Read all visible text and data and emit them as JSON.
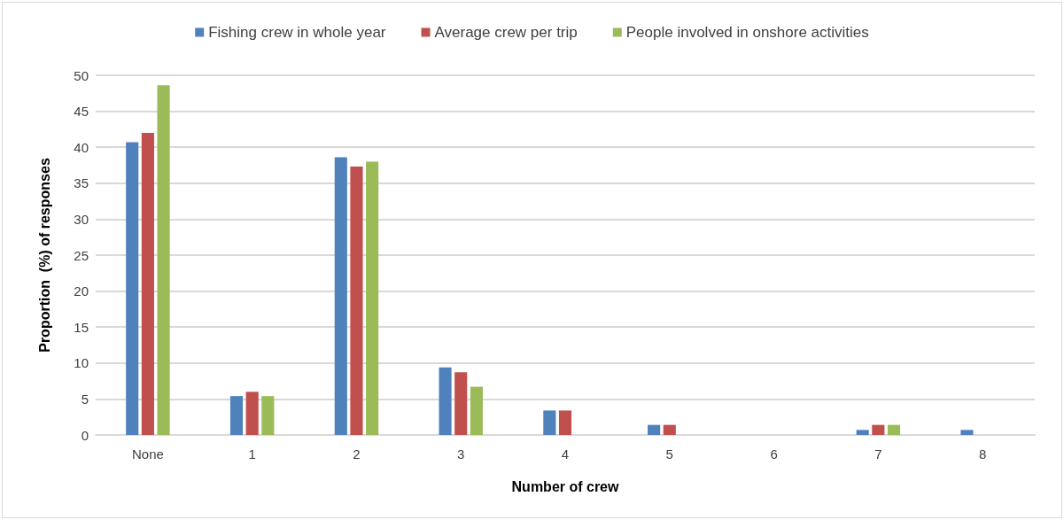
{
  "chart_data": {
    "type": "bar",
    "xlabel": "Number of crew",
    "ylabel": "Proportion  (%) of responses",
    "categories": [
      "None",
      "1",
      "2",
      "3",
      "4",
      "5",
      "6",
      "7",
      "8"
    ],
    "series": [
      {
        "name": "Fishing crew in whole year",
        "color": "#4f81bd",
        "values": [
          40.7,
          5.4,
          38.6,
          9.4,
          3.4,
          1.4,
          null,
          0.7,
          0.7
        ]
      },
      {
        "name": "Average crew per trip",
        "color": "#c0504d",
        "values": [
          42.0,
          6.0,
          37.3,
          8.7,
          3.4,
          1.4,
          null,
          1.4,
          null
        ]
      },
      {
        "name": "People involved in onshore activities",
        "color": "#9bbb59",
        "values": [
          48.6,
          5.4,
          38.0,
          6.7,
          null,
          null,
          null,
          1.4,
          null
        ]
      }
    ],
    "ylim": [
      0,
      50
    ],
    "yticks": [
      0,
      5,
      10,
      15,
      20,
      25,
      30,
      35,
      40,
      45,
      50
    ],
    "grid": "y",
    "legend": "top"
  }
}
